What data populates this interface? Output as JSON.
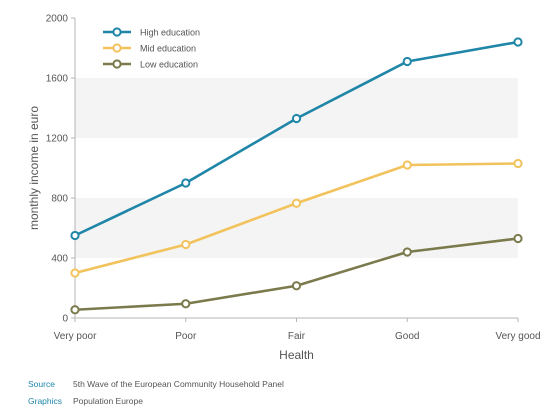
{
  "chart_data": {
    "type": "line",
    "categories": [
      "Very poor",
      "Poor",
      "Fair",
      "Good",
      "Very good"
    ],
    "series": [
      {
        "name": "High education",
        "values": [
          550,
          900,
          1330,
          1710,
          1840
        ],
        "color": "#1f86a8"
      },
      {
        "name": "Mid education",
        "values": [
          300,
          490,
          765,
          1020,
          1030
        ],
        "color": "#f2c35c"
      },
      {
        "name": "Low education",
        "values": [
          55,
          95,
          215,
          440,
          530
        ],
        "color": "#7b7a4c"
      }
    ],
    "xlabel": "Health",
    "ylabel": "monthly income in euro",
    "ylim": [
      0,
      2000
    ],
    "yticks": [
      0,
      400,
      800,
      1200,
      1600,
      2000
    ],
    "grid": "alternating horizontal bands",
    "legend_position": "top-left"
  },
  "footer": {
    "source_label": "Source",
    "source_text": "5th Wave of the European Community Household Panel",
    "graphics_label": "Graphics",
    "graphics_text": "Population Europe",
    "label_color": "#1f86a8"
  }
}
